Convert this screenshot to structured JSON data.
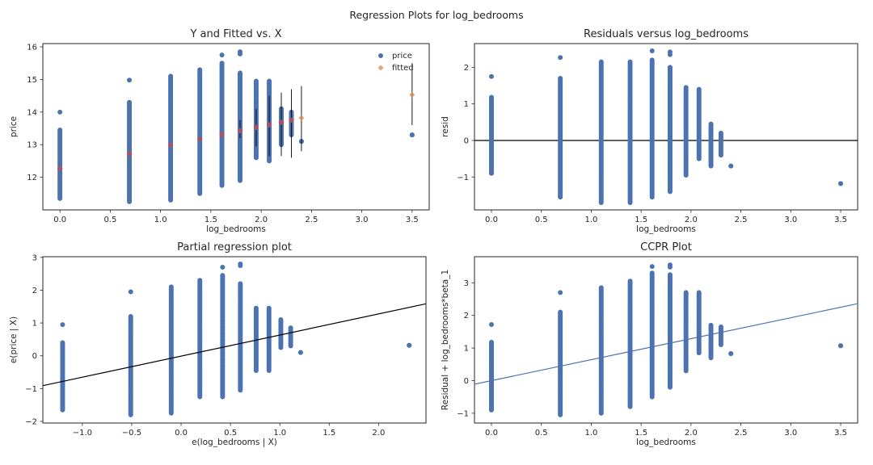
{
  "figure": {
    "suptitle": "Regression Plots for log_bedrooms"
  },
  "colors": {
    "points": "#4c72b0",
    "fitted": "#dd8452",
    "fitted_marker": "#c44e52",
    "line_black": "#000000",
    "line_blue": "#4c72b0"
  },
  "chart_data": [
    {
      "type": "scatter",
      "title": "Y and Fitted vs. X",
      "xlabel": "log_bedrooms",
      "ylabel": "price",
      "xlim": [
        -0.17,
        3.67
      ],
      "ylim": [
        11.0,
        16.1
      ],
      "xticks": [
        0.0,
        0.5,
        1.0,
        1.5,
        2.0,
        2.5,
        3.0,
        3.5
      ],
      "xtick_labels": [
        "0.0",
        "0.5",
        "1.0",
        "1.5",
        "2.0",
        "2.5",
        "3.0",
        "3.5"
      ],
      "yticks": [
        12,
        13,
        14,
        15,
        16
      ],
      "ytick_labels": [
        "12",
        "13",
        "14",
        "15",
        "16"
      ],
      "legend": {
        "position": "top-right",
        "entries": [
          "price",
          "fitted"
        ]
      },
      "grid": false,
      "columns": [
        {
          "x": 0.0,
          "min": 11.35,
          "max": 13.45,
          "outliers": [
            14.0
          ]
        },
        {
          "x": 0.69,
          "min": 11.25,
          "max": 14.3,
          "outliers": [
            14.98
          ]
        },
        {
          "x": 1.1,
          "min": 11.3,
          "max": 15.1
        },
        {
          "x": 1.39,
          "min": 11.5,
          "max": 15.3
        },
        {
          "x": 1.61,
          "min": 11.75,
          "max": 15.5,
          "outliers": [
            15.75
          ]
        },
        {
          "x": 1.79,
          "min": 11.9,
          "max": 15.2,
          "outliers": [
            15.85,
            15.78
          ]
        },
        {
          "x": 1.95,
          "min": 12.6,
          "max": 14.95
        },
        {
          "x": 2.08,
          "min": 12.5,
          "max": 14.95
        },
        {
          "x": 2.2,
          "min": 13.0,
          "max": 14.1
        },
        {
          "x": 2.3,
          "min": 13.3,
          "max": 14.0
        },
        {
          "x": 2.4,
          "min": 13.1,
          "max": 13.1
        },
        {
          "x": 3.5,
          "min": 13.3,
          "max": 13.3
        }
      ],
      "fitted": [
        {
          "x": 0.0,
          "y": 12.27,
          "low": 12.27,
          "high": 12.27
        },
        {
          "x": 0.69,
          "y": 12.72,
          "low": 12.7,
          "high": 12.74
        },
        {
          "x": 1.1,
          "y": 12.99,
          "low": 12.97,
          "high": 13.01
        },
        {
          "x": 1.39,
          "y": 13.17,
          "low": 13.15,
          "high": 13.19
        },
        {
          "x": 1.61,
          "y": 13.31,
          "low": 13.29,
          "high": 13.33
        },
        {
          "x": 1.79,
          "y": 13.43,
          "low": 13.2,
          "high": 13.75
        },
        {
          "x": 1.95,
          "y": 13.53,
          "low": 12.95,
          "high": 14.1
        },
        {
          "x": 2.08,
          "y": 13.61,
          "low": 12.65,
          "high": 14.5
        },
        {
          "x": 2.2,
          "y": 13.69,
          "low": 12.65,
          "high": 14.6
        },
        {
          "x": 2.3,
          "y": 13.75,
          "low": 12.6,
          "high": 14.7
        },
        {
          "x": 2.4,
          "y": 13.82,
          "low": 12.8,
          "high": 14.8
        },
        {
          "x": 3.5,
          "y": 14.53,
          "low": 13.6,
          "high": 15.5
        }
      ]
    },
    {
      "type": "scatter",
      "title": "Residuals versus log_bedrooms",
      "xlabel": "log_bedrooms",
      "ylabel": "resid",
      "xlim": [
        -0.17,
        3.67
      ],
      "ylim": [
        -1.9,
        2.65
      ],
      "xticks": [
        0.0,
        0.5,
        1.0,
        1.5,
        2.0,
        2.5,
        3.0,
        3.5
      ],
      "xtick_labels": [
        "0.0",
        "0.5",
        "1.0",
        "1.5",
        "2.0",
        "2.5",
        "3.0",
        "3.5"
      ],
      "yticks": [
        -1,
        0,
        1,
        2
      ],
      "ytick_labels": [
        "−1",
        "0",
        "1",
        "2"
      ],
      "hline": 0,
      "grid": false,
      "columns": [
        {
          "x": 0.0,
          "min": -0.9,
          "max": 1.18,
          "outliers": [
            1.75
          ]
        },
        {
          "x": 0.69,
          "min": -1.55,
          "max": 1.7,
          "outliers": [
            2.27
          ]
        },
        {
          "x": 1.1,
          "min": -1.7,
          "max": 2.15
        },
        {
          "x": 1.39,
          "min": -1.7,
          "max": 2.15
        },
        {
          "x": 1.61,
          "min": -1.55,
          "max": 2.2,
          "outliers": [
            2.45
          ]
        },
        {
          "x": 1.79,
          "min": -1.4,
          "max": 2.0,
          "outliers": [
            2.42,
            2.35
          ]
        },
        {
          "x": 1.95,
          "min": -0.95,
          "max": 1.45
        },
        {
          "x": 2.08,
          "min": -0.5,
          "max": 1.4
        },
        {
          "x": 2.2,
          "min": -0.7,
          "max": 0.45
        },
        {
          "x": 2.3,
          "min": -0.4,
          "max": 0.2
        },
        {
          "x": 2.4,
          "min": -0.7,
          "max": -0.7
        },
        {
          "x": 3.5,
          "min": -1.18,
          "max": -1.18
        }
      ]
    },
    {
      "type": "scatter",
      "title": "Partial regression plot",
      "xlabel": "e(log_bedrooms | X)",
      "ylabel": "e(price | X)",
      "xlim": [
        -1.4,
        2.48
      ],
      "ylim": [
        -2.05,
        3.02
      ],
      "xticks": [
        -1.0,
        -0.5,
        0.0,
        0.5,
        1.0,
        1.5,
        2.0
      ],
      "xtick_labels": [
        "−1.0",
        "−0.5",
        "0.0",
        "0.5",
        "1.0",
        "1.5",
        "2.0"
      ],
      "yticks": [
        -2,
        -1,
        0,
        1,
        2,
        3
      ],
      "ytick_labels": [
        "−2",
        "−1",
        "0",
        "1",
        "2",
        "3"
      ],
      "fit_line": {
        "slope": 0.643,
        "intercept": -0.01
      },
      "grid": false,
      "columns": [
        {
          "x": -1.2,
          "min": -1.65,
          "max": 0.4,
          "outliers": [
            0.95
          ]
        },
        {
          "x": -0.51,
          "min": -1.8,
          "max": 1.2,
          "outliers": [
            1.95
          ]
        },
        {
          "x": -0.1,
          "min": -1.75,
          "max": 2.1
        },
        {
          "x": 0.19,
          "min": -1.25,
          "max": 2.3
        },
        {
          "x": 0.42,
          "min": -1.25,
          "max": 2.45,
          "outliers": [
            2.7
          ]
        },
        {
          "x": 0.6,
          "min": -1.05,
          "max": 2.2,
          "outliers": [
            2.8,
            2.75
          ]
        },
        {
          "x": 0.76,
          "min": -0.45,
          "max": 1.45
        },
        {
          "x": 0.89,
          "min": -0.45,
          "max": 1.45
        },
        {
          "x": 1.01,
          "min": 0.25,
          "max": 1.1
        },
        {
          "x": 1.11,
          "min": 0.3,
          "max": 0.85
        },
        {
          "x": 1.21,
          "min": 0.1,
          "max": 0.1
        },
        {
          "x": 2.31,
          "min": 0.32,
          "max": 0.32
        }
      ]
    },
    {
      "type": "scatter",
      "title": "CCPR Plot",
      "xlabel": "log_bedrooms",
      "ylabel": "Residual + log_bedrooms*beta_1",
      "xlim": [
        -0.17,
        3.67
      ],
      "ylim": [
        -1.3,
        3.8
      ],
      "xticks": [
        0.0,
        0.5,
        1.0,
        1.5,
        2.0,
        2.5,
        3.0,
        3.5
      ],
      "xtick_labels": [
        "0.0",
        "0.5",
        "1.0",
        "1.5",
        "2.0",
        "2.5",
        "3.0",
        "3.5"
      ],
      "yticks": [
        -1,
        0,
        1,
        2,
        3
      ],
      "ytick_labels": [
        "−1",
        "0",
        "1",
        "2",
        "3"
      ],
      "fit_line": {
        "slope": 0.643,
        "intercept": 0.0
      },
      "grid": false,
      "columns": [
        {
          "x": 0.0,
          "min": -0.9,
          "max": 1.18,
          "outliers": [
            1.72
          ]
        },
        {
          "x": 0.69,
          "min": -1.05,
          "max": 2.1,
          "outliers": [
            2.7
          ]
        },
        {
          "x": 1.1,
          "min": -1.0,
          "max": 2.85
        },
        {
          "x": 1.39,
          "min": -0.8,
          "max": 3.05
        },
        {
          "x": 1.61,
          "min": -0.5,
          "max": 3.3,
          "outliers": [
            3.5
          ]
        },
        {
          "x": 1.79,
          "min": -0.2,
          "max": 3.25,
          "outliers": [
            3.55,
            3.48
          ]
        },
        {
          "x": 1.95,
          "min": 0.3,
          "max": 2.7
        },
        {
          "x": 2.08,
          "min": 0.85,
          "max": 2.7
        },
        {
          "x": 2.2,
          "min": 0.7,
          "max": 1.7
        },
        {
          "x": 2.3,
          "min": 1.1,
          "max": 1.65
        },
        {
          "x": 2.4,
          "min": 0.83,
          "max": 0.83
        },
        {
          "x": 3.5,
          "min": 1.07,
          "max": 1.07
        }
      ]
    }
  ]
}
